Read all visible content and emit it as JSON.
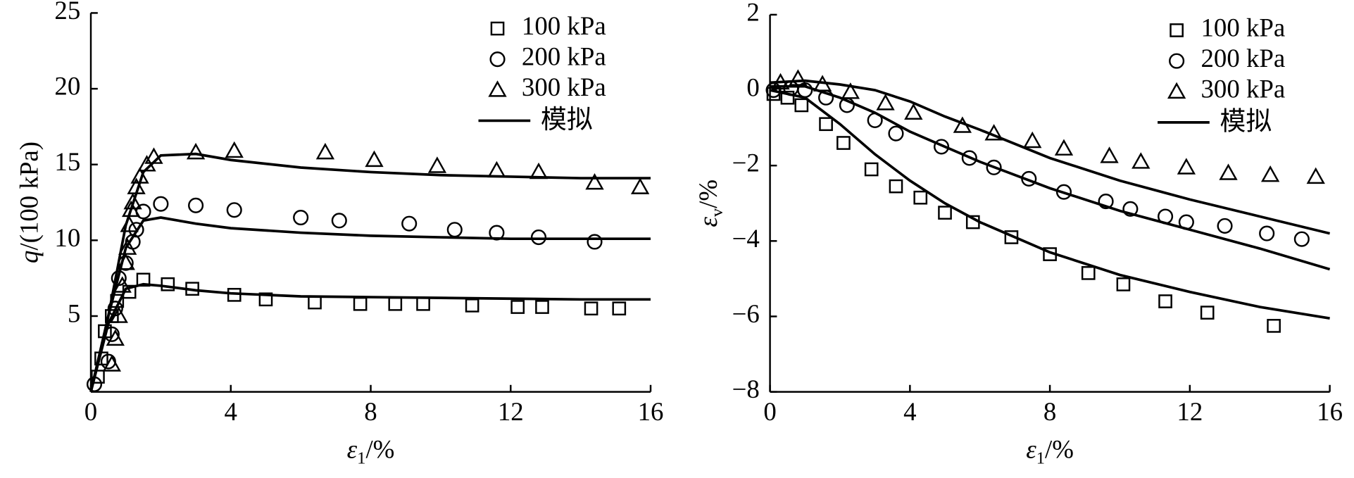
{
  "chart_data": [
    {
      "type": "scatter",
      "ylabel": [
        "q",
        "/(100 kPa)"
      ],
      "xlabel": [
        "ε",
        "1",
        "/%"
      ],
      "xlim": [
        0,
        16
      ],
      "xticks": [
        0,
        4,
        8,
        12,
        16
      ],
      "ylim": [
        0,
        25
      ],
      "yticks": [
        5,
        10,
        15,
        20,
        25
      ],
      "series": [
        {
          "name": "100 kPa",
          "marker": "square",
          "color": "#000000",
          "x": [
            0.2,
            0.3,
            0.4,
            0.6,
            0.75,
            1.1,
            1.5,
            2.2,
            2.9,
            4.1,
            5.0,
            6.4,
            7.7,
            8.7,
            9.5,
            10.9,
            12.2,
            12.9,
            14.3,
            15.1
          ],
          "values": [
            1.0,
            2.2,
            4.0,
            5.0,
            6.0,
            6.6,
            7.4,
            7.1,
            6.8,
            6.4,
            6.1,
            5.9,
            5.8,
            5.8,
            5.8,
            5.7,
            5.6,
            5.6,
            5.5,
            5.5
          ]
        },
        {
          "name": "200 kPa",
          "marker": "circle",
          "color": "#000000",
          "x": [
            0.1,
            0.5,
            0.6,
            0.7,
            0.8,
            1.0,
            1.2,
            1.3,
            1.5,
            2.0,
            3.0,
            4.1,
            6.0,
            7.1,
            9.1,
            10.4,
            11.6,
            12.8,
            14.4
          ],
          "values": [
            0.5,
            2.0,
            3.8,
            5.5,
            7.5,
            8.5,
            9.9,
            10.7,
            11.9,
            12.4,
            12.3,
            12.0,
            11.5,
            11.3,
            11.1,
            10.7,
            10.5,
            10.2,
            9.9
          ]
        },
        {
          "name": "300 kPa",
          "marker": "triangle",
          "color": "#000000",
          "x": [
            0.6,
            0.7,
            0.8,
            0.9,
            1.0,
            1.05,
            1.1,
            1.15,
            1.2,
            1.3,
            1.4,
            1.6,
            1.8,
            3.0,
            4.1,
            6.7,
            8.1,
            9.9,
            11.6,
            12.8,
            14.4,
            15.7
          ],
          "values": [
            1.8,
            3.5,
            5.0,
            7.0,
            8.5,
            9.5,
            11.0,
            12.0,
            12.5,
            13.5,
            14.2,
            15.0,
            15.5,
            15.8,
            15.9,
            15.8,
            15.3,
            14.9,
            14.6,
            14.5,
            13.8,
            13.5
          ]
        }
      ],
      "simulation": {
        "name": "模拟",
        "color": "#000000",
        "x": [
          0,
          0.5,
          1,
          1.5,
          2,
          3,
          4,
          6,
          8,
          10,
          12,
          14,
          16
        ],
        "curves": [
          [
            0,
            4.5,
            6.8,
            7.1,
            7.0,
            6.7,
            6.5,
            6.3,
            6.25,
            6.2,
            6.15,
            6.1,
            6.1
          ],
          [
            0,
            5,
            9.5,
            11.3,
            11.5,
            11.1,
            10.8,
            10.5,
            10.3,
            10.2,
            10.1,
            10.1,
            10.1
          ],
          [
            0,
            5,
            11,
            14.5,
            15.6,
            15.7,
            15.3,
            14.8,
            14.5,
            14.3,
            14.2,
            14.1,
            14.1
          ]
        ]
      }
    },
    {
      "type": "scatter",
      "ylabel": [
        "ε",
        "v",
        "/%"
      ],
      "xlabel": [
        "ε",
        "1",
        "/%"
      ],
      "xlim": [
        0,
        16
      ],
      "xticks": [
        0,
        4,
        8,
        12,
        16
      ],
      "ylim": [
        -8,
        2
      ],
      "yticks": [
        -8,
        -6,
        -4,
        -2,
        0,
        2
      ],
      "series": [
        {
          "name": "100 kPa",
          "marker": "square",
          "color": "#000000",
          "x": [
            0.1,
            0.5,
            0.9,
            1.6,
            2.1,
            2.9,
            3.6,
            4.3,
            5.0,
            5.8,
            6.9,
            8.0,
            9.1,
            10.1,
            11.3,
            12.5,
            14.4
          ],
          "values": [
            -0.1,
            -0.2,
            -0.4,
            -0.9,
            -1.4,
            -2.1,
            -2.55,
            -2.85,
            -3.25,
            -3.5,
            -3.9,
            -4.35,
            -4.85,
            -5.15,
            -5.6,
            -5.9,
            -6.25
          ]
        },
        {
          "name": "200 kPa",
          "marker": "circle",
          "color": "#000000",
          "x": [
            0.1,
            0.6,
            1.0,
            1.6,
            2.2,
            3.0,
            3.6,
            4.9,
            5.7,
            6.4,
            7.4,
            8.4,
            9.6,
            10.3,
            11.3,
            11.9,
            13.0,
            14.2,
            15.2
          ],
          "values": [
            0.0,
            0.05,
            0.0,
            -0.2,
            -0.4,
            -0.8,
            -1.15,
            -1.5,
            -1.8,
            -2.05,
            -2.35,
            -2.7,
            -2.95,
            -3.15,
            -3.35,
            -3.5,
            -3.6,
            -3.8,
            -3.95
          ]
        },
        {
          "name": "300 kPa",
          "marker": "triangle",
          "color": "#000000",
          "x": [
            0.3,
            0.8,
            1.5,
            2.3,
            3.3,
            4.1,
            5.5,
            6.4,
            7.5,
            8.4,
            9.7,
            10.6,
            11.9,
            13.1,
            14.3,
            15.6
          ],
          "values": [
            0.2,
            0.3,
            0.15,
            -0.05,
            -0.35,
            -0.6,
            -0.95,
            -1.15,
            -1.35,
            -1.55,
            -1.75,
            -1.9,
            -2.05,
            -2.2,
            -2.25,
            -2.3
          ]
        }
      ],
      "simulation": {
        "name": "模拟",
        "color": "#000000",
        "x": [
          0,
          1,
          2,
          3,
          4,
          5,
          6,
          8,
          10,
          12,
          14,
          16
        ],
        "curves": [
          [
            0,
            -0.2,
            -0.9,
            -1.7,
            -2.4,
            -3.0,
            -3.5,
            -4.3,
            -4.9,
            -5.35,
            -5.75,
            -6.05
          ],
          [
            0.1,
            0.1,
            -0.2,
            -0.6,
            -1.1,
            -1.5,
            -1.9,
            -2.6,
            -3.2,
            -3.7,
            -4.2,
            -4.75
          ],
          [
            0.2,
            0.25,
            0.15,
            0,
            -0.3,
            -0.7,
            -1.05,
            -1.8,
            -2.4,
            -2.9,
            -3.35,
            -3.8
          ]
        ]
      }
    }
  ]
}
